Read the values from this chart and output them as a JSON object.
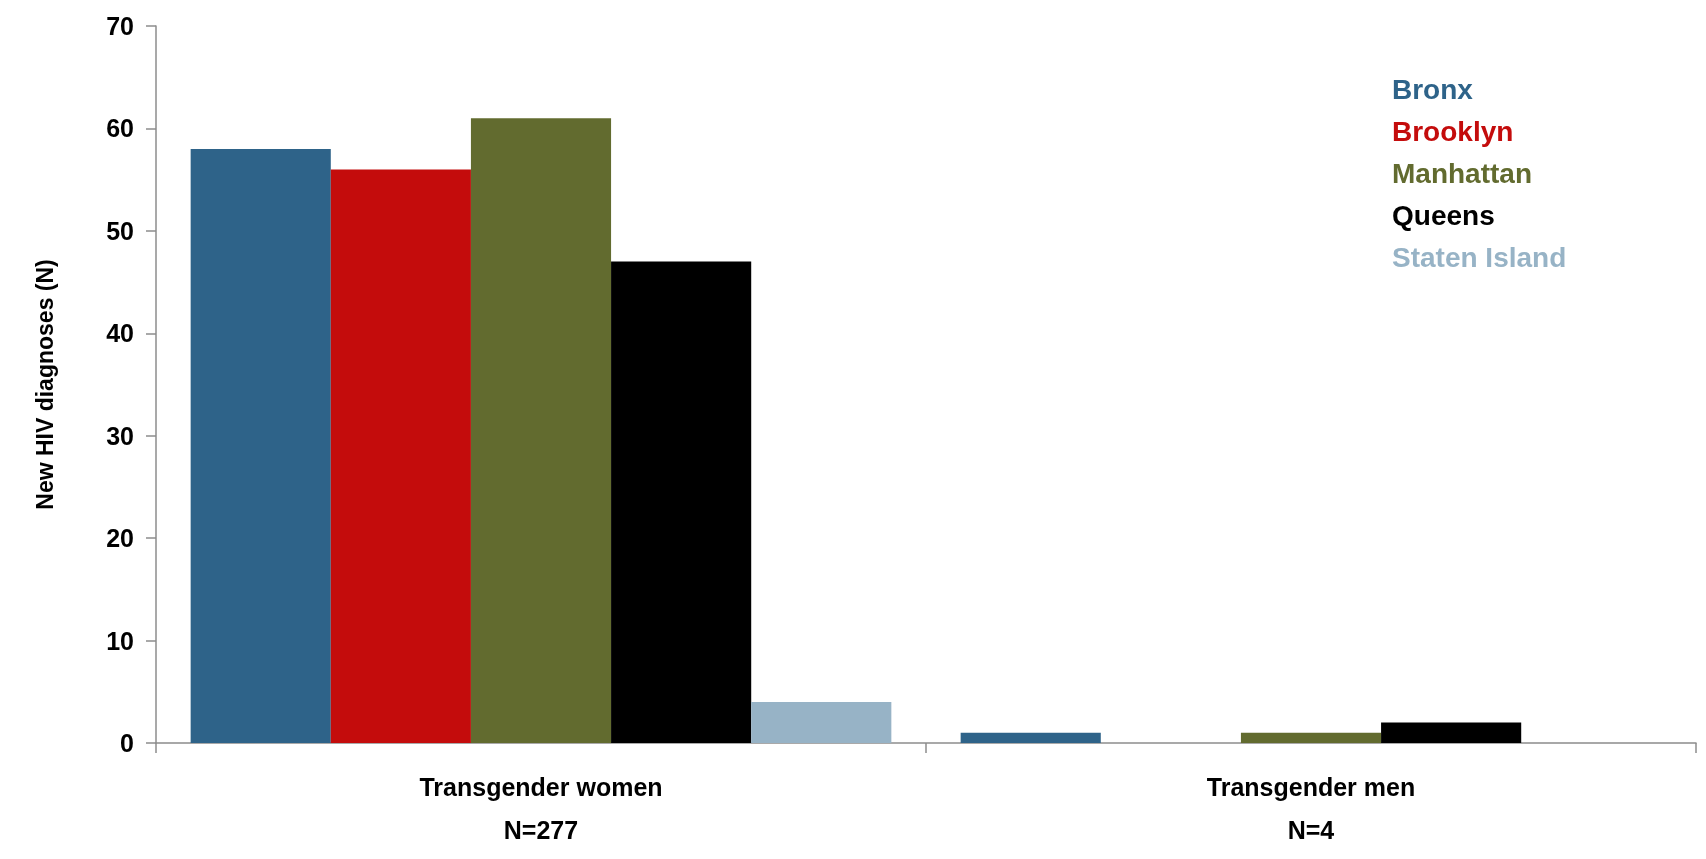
{
  "chart_data": {
    "type": "bar",
    "ylabel": "New HIV diagnoses (N)",
    "categories": [
      "Transgender women\nN=277",
      "Transgender men\nN=4"
    ],
    "series": [
      {
        "name": "Bronx",
        "color": "#2e6389",
        "values": [
          58,
          1
        ]
      },
      {
        "name": "Brooklyn",
        "color": "#c40c0c",
        "values": [
          56,
          0
        ]
      },
      {
        "name": "Manhattan",
        "color": "#626b2f",
        "values": [
          61,
          1
        ]
      },
      {
        "name": "Queens",
        "color": "#000000",
        "values": [
          47,
          2
        ]
      },
      {
        "name": "Staten Island",
        "color": "#97b3c6",
        "values": [
          4,
          0
        ]
      }
    ],
    "ylim": [
      0,
      70
    ],
    "yticks": [
      0,
      10,
      20,
      30,
      40,
      50,
      60,
      70
    ],
    "legend": "top right"
  }
}
